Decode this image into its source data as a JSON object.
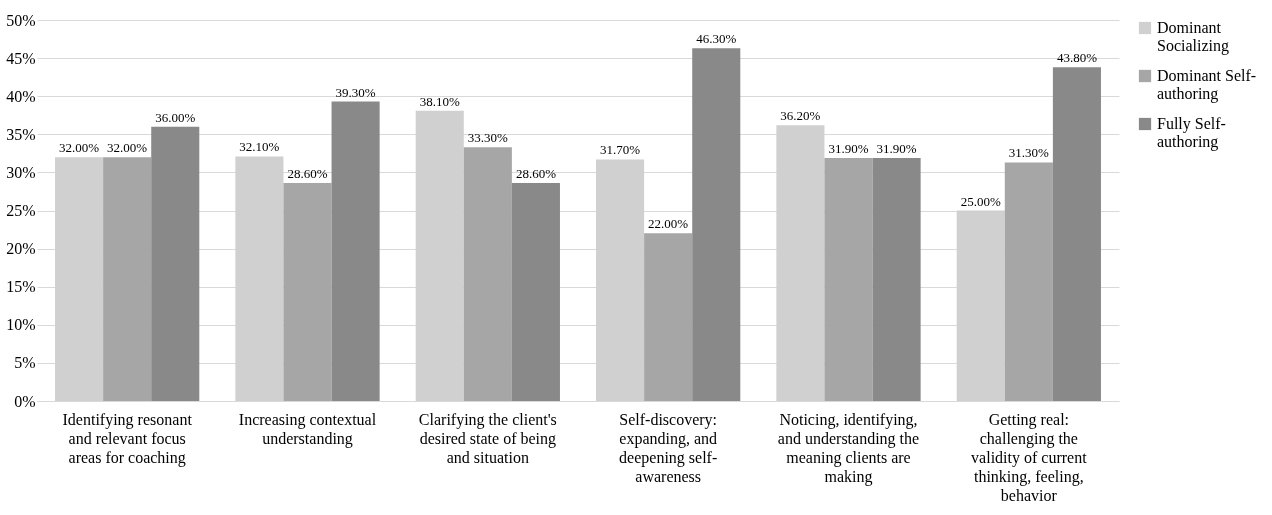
{
  "chart_data": {
    "type": "bar",
    "categories": [
      "Identifying resonant and relevant focus areas for coaching",
      "Increasing contextual understanding",
      "Clarifying the client's desired state of being and situation",
      "Self-discovery: expanding, and deepening self-awareness",
      "Noticing, identifying, and understanding the meaning clients are making",
      "Getting real: challenging the validity of current thinking, feeling, behavior"
    ],
    "series": [
      {
        "name": "Dominant Socializing",
        "color": "#d0d0d0",
        "values": [
          32.0,
          32.1,
          38.1,
          31.7,
          36.2,
          25.0
        ],
        "value_labels": [
          "32.00%",
          "32.10%",
          "38.10%",
          "31.70%",
          "36.20%",
          "25.00%"
        ]
      },
      {
        "name": "Dominant Self-authoring",
        "color": "#a6a6a6",
        "values": [
          32.0,
          28.6,
          33.3,
          22.0,
          31.9,
          31.3
        ],
        "value_labels": [
          "32.00%",
          "28.60%",
          "33.30%",
          "22.00%",
          "31.90%",
          "31.30%"
        ]
      },
      {
        "name": "Fully Self-authoring",
        "color": "#898989",
        "values": [
          36.0,
          39.3,
          28.6,
          46.3,
          31.9,
          43.8
        ],
        "value_labels": [
          "36.00%",
          "39.30%",
          "28.60%",
          "46.30%",
          "31.90%",
          "43.80%"
        ]
      }
    ],
    "ylim": [
      0,
      50
    ],
    "yticks": [
      {
        "value": 0,
        "label": "0%"
      },
      {
        "value": 5,
        "label": "5%"
      },
      {
        "value": 10,
        "label": "10%"
      },
      {
        "value": 15,
        "label": "15%"
      },
      {
        "value": 20,
        "label": "20%"
      },
      {
        "value": 25,
        "label": "25%"
      },
      {
        "value": 30,
        "label": "30%"
      },
      {
        "value": 35,
        "label": "35%"
      },
      {
        "value": 40,
        "label": "40%"
      },
      {
        "value": 45,
        "label": "45%"
      },
      {
        "value": 50,
        "label": "50%"
      }
    ],
    "grid": "y",
    "legend": "right"
  }
}
